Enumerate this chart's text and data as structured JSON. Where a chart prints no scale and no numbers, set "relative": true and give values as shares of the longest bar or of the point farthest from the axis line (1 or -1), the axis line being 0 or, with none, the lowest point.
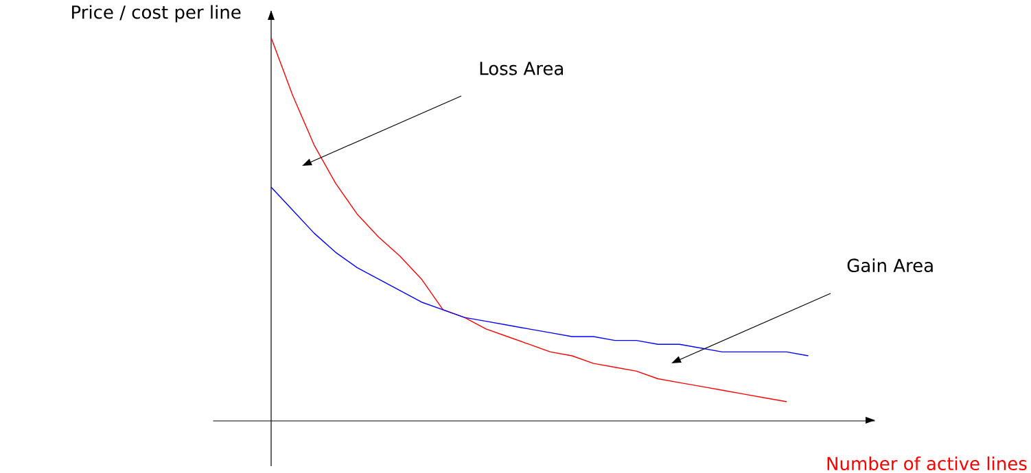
{
  "chart_data": {
    "type": "line",
    "relative": true,
    "ylabel": "Price / cost per line",
    "xlabel": "Number of active lines",
    "annotations": [
      "Loss Area",
      "Gain Area"
    ],
    "categories": [
      null,
      null,
      null,
      null,
      null,
      null,
      null,
      null,
      null,
      null,
      null,
      null,
      null,
      null,
      null,
      null,
      null,
      null,
      null,
      null,
      null,
      null,
      null,
      null,
      null,
      null
    ],
    "series": [
      {
        "color": "#ff0000",
        "values": [
          1.0,
          0.85,
          0.72,
          0.62,
          0.54,
          0.48,
          0.43,
          0.37,
          0.29,
          0.27,
          0.24,
          0.22,
          0.2,
          0.18,
          0.17,
          0.15,
          0.14,
          0.13,
          0.11,
          0.1,
          0.09,
          0.08,
          0.07,
          0.06,
          0.05,
          null
        ]
      },
      {
        "color": "#0000ff",
        "values": [
          0.61,
          0.55,
          0.49,
          0.44,
          0.4,
          0.37,
          0.34,
          0.31,
          0.29,
          0.27,
          0.26,
          0.25,
          0.24,
          0.23,
          0.22,
          0.22,
          0.21,
          0.21,
          0.2,
          0.2,
          0.19,
          0.18,
          0.18,
          0.18,
          0.18,
          0.17
        ]
      }
    ]
  }
}
